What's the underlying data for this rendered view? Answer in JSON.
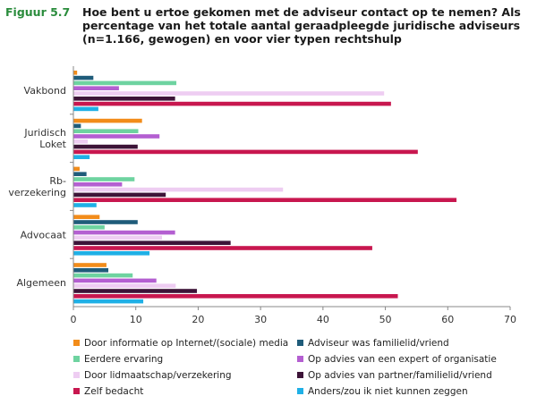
{
  "header": {
    "figure_label": "Figuur 5.7",
    "title": "Hoe bent u ertoe gekomen met de adviseur contact op te nemen? Als percentage van het totale aantal geraadpleegde juridische adviseurs (n=1.166, gewogen) en voor vier typen rechtshulp"
  },
  "chart_data": {
    "type": "bar",
    "orientation": "horizontal",
    "title": "Hoe bent u ertoe gekomen met de adviseur contact op te nemen? Als percentage van het totale aantal geraadpleegde juridische adviseurs (n=1.166, gewogen) en voor vier typen rechtshulp",
    "xlabel": "",
    "ylabel": "",
    "xlim": [
      0,
      70
    ],
    "xticks": [
      0,
      10,
      20,
      30,
      40,
      50,
      60,
      70
    ],
    "categories": [
      "Vakbond",
      "Juridisch\nLoket",
      "Rb-\nverzekering",
      "Advocaat",
      "Algemeen"
    ],
    "legend_position": "bottom",
    "grid": false,
    "series": [
      {
        "name": "Door informatie op Internet/(sociale) media",
        "color": "#f28c1a",
        "values": [
          0.6,
          11.0,
          1.0,
          4.2,
          5.3
        ]
      },
      {
        "name": "Adviseur was familielid/vriend",
        "color": "#1f5c7a",
        "values": [
          3.2,
          1.2,
          2.1,
          10.3,
          5.6
        ]
      },
      {
        "name": "Eerdere ervaring",
        "color": "#6ed3a0",
        "values": [
          16.5,
          10.4,
          9.8,
          5.0,
          9.5
        ]
      },
      {
        "name": "Op advies van een expert of organisatie",
        "color": "#b45fd1",
        "values": [
          7.3,
          13.8,
          7.8,
          16.3,
          13.3
        ]
      },
      {
        "name": "Door lidmaatschap/verzekering",
        "color": "#eecdf2",
        "values": [
          49.8,
          2.3,
          33.6,
          14.2,
          16.4
        ]
      },
      {
        "name": "Op advies van partner/familielid/vriend",
        "color": "#3d1438",
        "values": [
          16.3,
          10.3,
          14.8,
          25.2,
          19.8
        ]
      },
      {
        "name": "Zelf bedacht",
        "color": "#c8174f",
        "values": [
          50.9,
          55.2,
          61.4,
          47.9,
          52.0
        ]
      },
      {
        "name": "Anders/zou ik niet kunnen zeggen",
        "color": "#1fb0e6",
        "values": [
          4.0,
          2.6,
          3.7,
          12.2,
          11.2
        ]
      }
    ]
  }
}
